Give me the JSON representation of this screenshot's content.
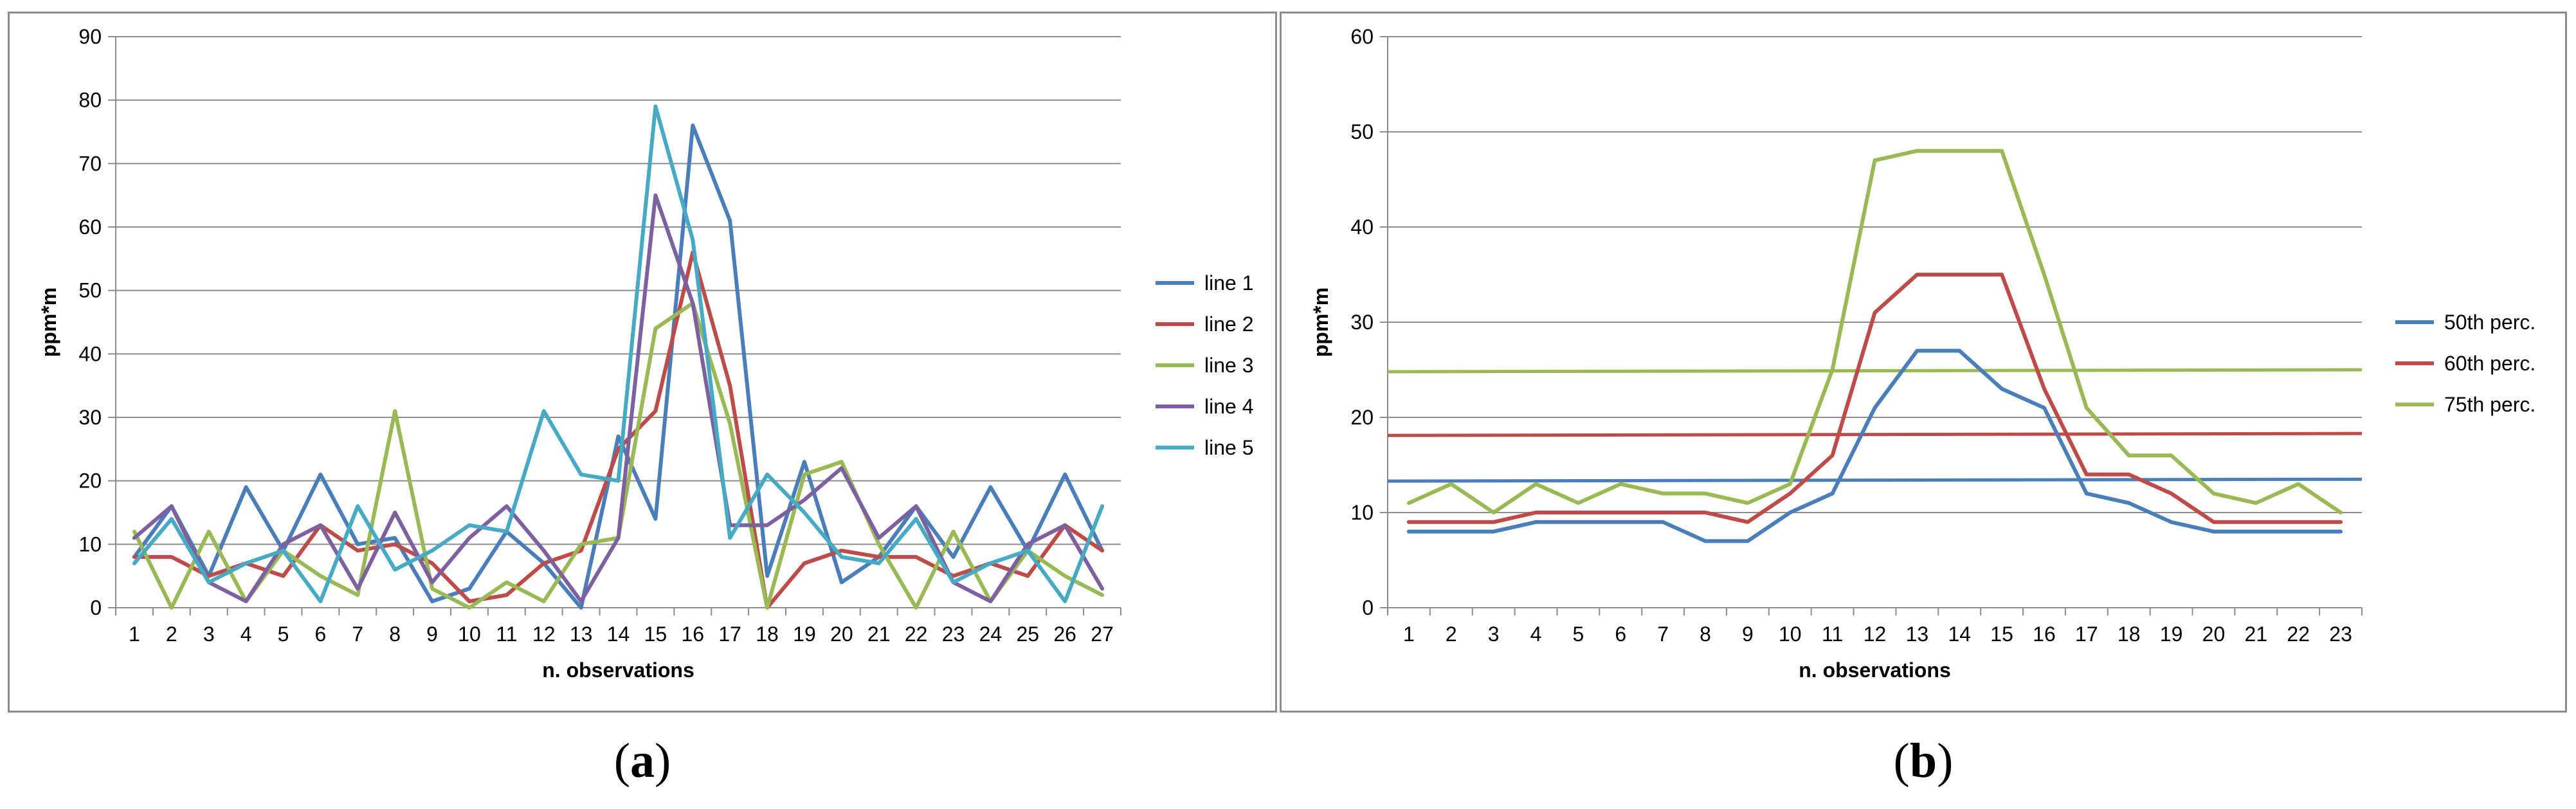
{
  "figure": {
    "caption_a": {
      "open": "(",
      "letter": "a",
      "close": ")"
    },
    "caption_b": {
      "open": "(",
      "letter": "b",
      "close": ")"
    }
  },
  "chart_data": [
    {
      "id": "a",
      "type": "line",
      "xlabel": "n. observations",
      "ylabel": "ppm*m",
      "ylim": [
        0,
        90
      ],
      "ytick_step": 10,
      "grid": true,
      "legend": "right",
      "categories": [
        "1",
        "2",
        "3",
        "4",
        "5",
        "6",
        "7",
        "8",
        "9",
        "10",
        "11",
        "12",
        "13",
        "14",
        "15",
        "16",
        "17",
        "18",
        "19",
        "20",
        "21",
        "22",
        "23",
        "24",
        "25",
        "26",
        "27"
      ],
      "series": [
        {
          "name": "line 1",
          "color": "#4a7ebb",
          "values": [
            8,
            16,
            5,
            19,
            9,
            21,
            10,
            11,
            1,
            3,
            12,
            7,
            0,
            27,
            14,
            76,
            61,
            5,
            23,
            4,
            8,
            16,
            8,
            19,
            9,
            21,
            9
          ]
        },
        {
          "name": "line 2",
          "color": "#be4b48",
          "values": [
            8,
            8,
            5,
            7,
            5,
            13,
            9,
            10,
            7,
            1,
            2,
            7,
            9,
            25,
            31,
            56,
            35,
            0,
            7,
            9,
            8,
            8,
            5,
            7,
            5,
            13,
            9
          ]
        },
        {
          "name": "line 3",
          "color": "#98b954",
          "values": [
            12,
            0,
            12,
            1,
            9,
            5,
            2,
            31,
            3,
            0,
            4,
            1,
            10,
            11,
            44,
            48,
            29,
            0,
            21,
            23,
            10,
            0,
            12,
            1,
            9,
            5,
            2
          ]
        },
        {
          "name": "line 4",
          "color": "#7d60a0",
          "values": [
            11,
            16,
            4,
            1,
            10,
            13,
            3,
            15,
            4,
            11,
            16,
            9,
            1,
            11,
            65,
            48,
            13,
            13,
            17,
            22,
            11,
            16,
            4,
            1,
            10,
            13,
            3
          ]
        },
        {
          "name": "line 5",
          "color": "#46aac5",
          "values": [
            7,
            14,
            4,
            7,
            9,
            1,
            16,
            6,
            9,
            13,
            12,
            31,
            21,
            20,
            79,
            58,
            11,
            21,
            15,
            8,
            7,
            14,
            4,
            7,
            9,
            1,
            16
          ]
        }
      ]
    },
    {
      "id": "b",
      "type": "line",
      "xlabel": "n. observations",
      "ylabel": "ppm*m",
      "ylim": [
        0,
        60
      ],
      "ytick_step": 10,
      "grid": true,
      "legend": "right",
      "categories": [
        "1",
        "2",
        "3",
        "4",
        "5",
        "6",
        "7",
        "8",
        "9",
        "10",
        "11",
        "12",
        "13",
        "14",
        "15",
        "16",
        "17",
        "18",
        "19",
        "20",
        "21",
        "22",
        "23"
      ],
      "series": [
        {
          "name": "50th perc.",
          "color": "#4a7ebb",
          "values": [
            8,
            8,
            8,
            9,
            9,
            9,
            9,
            7,
            7,
            10,
            12,
            21,
            27,
            27,
            23,
            21,
            12,
            11,
            9,
            8,
            8,
            8,
            8
          ],
          "threshold": [
            13.3,
            13.5
          ]
        },
        {
          "name": "60th perc.",
          "color": "#be4b48",
          "values": [
            9,
            9,
            9,
            10,
            10,
            10,
            10,
            10,
            9,
            12,
            16,
            31,
            35,
            35,
            35,
            23,
            14,
            14,
            12,
            9,
            9,
            9,
            9
          ],
          "threshold": [
            18.1,
            18.3
          ]
        },
        {
          "name": "75th perc.",
          "color": "#98b954",
          "values": [
            11,
            13,
            10,
            13,
            11,
            13,
            12,
            12,
            11,
            13,
            25,
            47,
            48,
            48,
            48,
            35,
            21,
            16,
            16,
            12,
            11,
            13,
            10
          ],
          "threshold": [
            24.8,
            25.0
          ]
        }
      ]
    }
  ]
}
